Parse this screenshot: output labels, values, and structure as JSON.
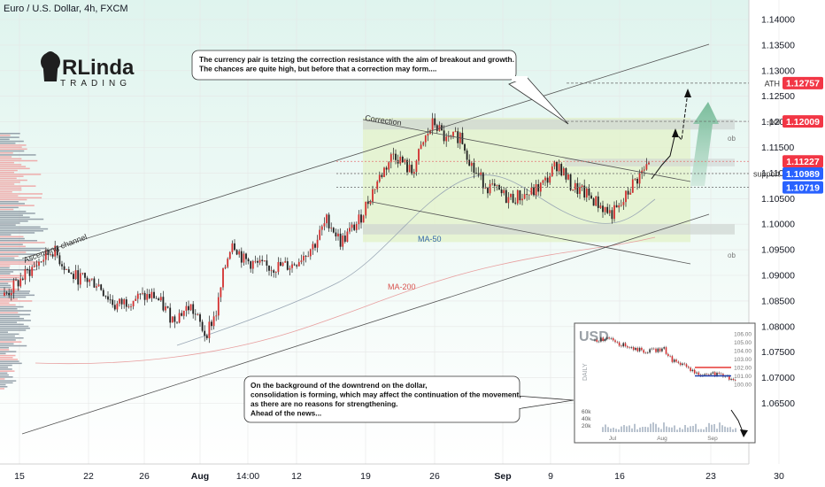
{
  "header": {
    "title": "Euro / U.S. Dollar, 4h, FXCM"
  },
  "logo": {
    "text": "RLinda",
    "sub": "TRADING"
  },
  "colors": {
    "bull": "#26a69a",
    "bear": "#e53935",
    "candle": "#1f1f1f",
    "up_accent": "#d32f2f",
    "box_fill": "#e3f2c8",
    "grid": "#e6e6e6",
    "price_red": "#f23645",
    "price_blue": "#2962ff",
    "arrow": "#7fbf9f"
  },
  "annotations": {
    "top_note": "The currency pair is tetzing the correction resistance with the aim of breakout and growth.\nThe chances are quite high, but before that a correction may form....",
    "bottom_note": "On the background of the downtrend on the dollar,\nconsolidation is forming, which may affect the continuation of the movement,\nas there are no reasons for strengthening.\nAhead of the news...",
    "correction_label": "Correction",
    "channel_label": "Ascending channel",
    "ma50_label": "MA-50",
    "ma200_label": "MA-200",
    "ob_upper": "ob",
    "ob_lower": "ob"
  },
  "chart_data": {
    "type": "candlestick",
    "symbol": "EURUSD",
    "timeframe": "4h",
    "y_axis": {
      "ticks": [
        "1.14000",
        "1.13500",
        "1.13000",
        "1.12500",
        "1.12000",
        "1.11500",
        "1.11000",
        "1.10500",
        "1.10000",
        "1.09500",
        "1.09000",
        "1.08500",
        "1.08000",
        "1.07500",
        "1.07000",
        "1.06500"
      ],
      "range": [
        1.0625,
        1.1425
      ]
    },
    "x_axis": {
      "ticks": [
        "15",
        "22",
        "26",
        "Aug",
        "14:00",
        "12",
        "19",
        "26",
        "Sep",
        "9",
        "16",
        "23",
        "30"
      ]
    },
    "price_levels": [
      {
        "label": "ATH",
        "value": "1.12757",
        "color": "red"
      },
      {
        "label": "-poi",
        "value": "1.12009",
        "color": "red"
      },
      {
        "label": "",
        "value": "1.11227",
        "color": "red"
      },
      {
        "label": "support",
        "value": "1.10989",
        "color": "blue"
      },
      {
        "label": "",
        "value": "1.10719",
        "color": "blue"
      }
    ],
    "inset": {
      "title": "USD",
      "side_label": "DAILY",
      "y_ticks": [
        "106.00",
        "105.00",
        "104.00",
        "103.00",
        "102.00",
        "101.00",
        "100.00"
      ],
      "x_ticks": [
        "Jul",
        "Aug",
        "Sep"
      ],
      "volume_ticks": [
        "60k",
        "40k",
        "20k"
      ]
    }
  }
}
